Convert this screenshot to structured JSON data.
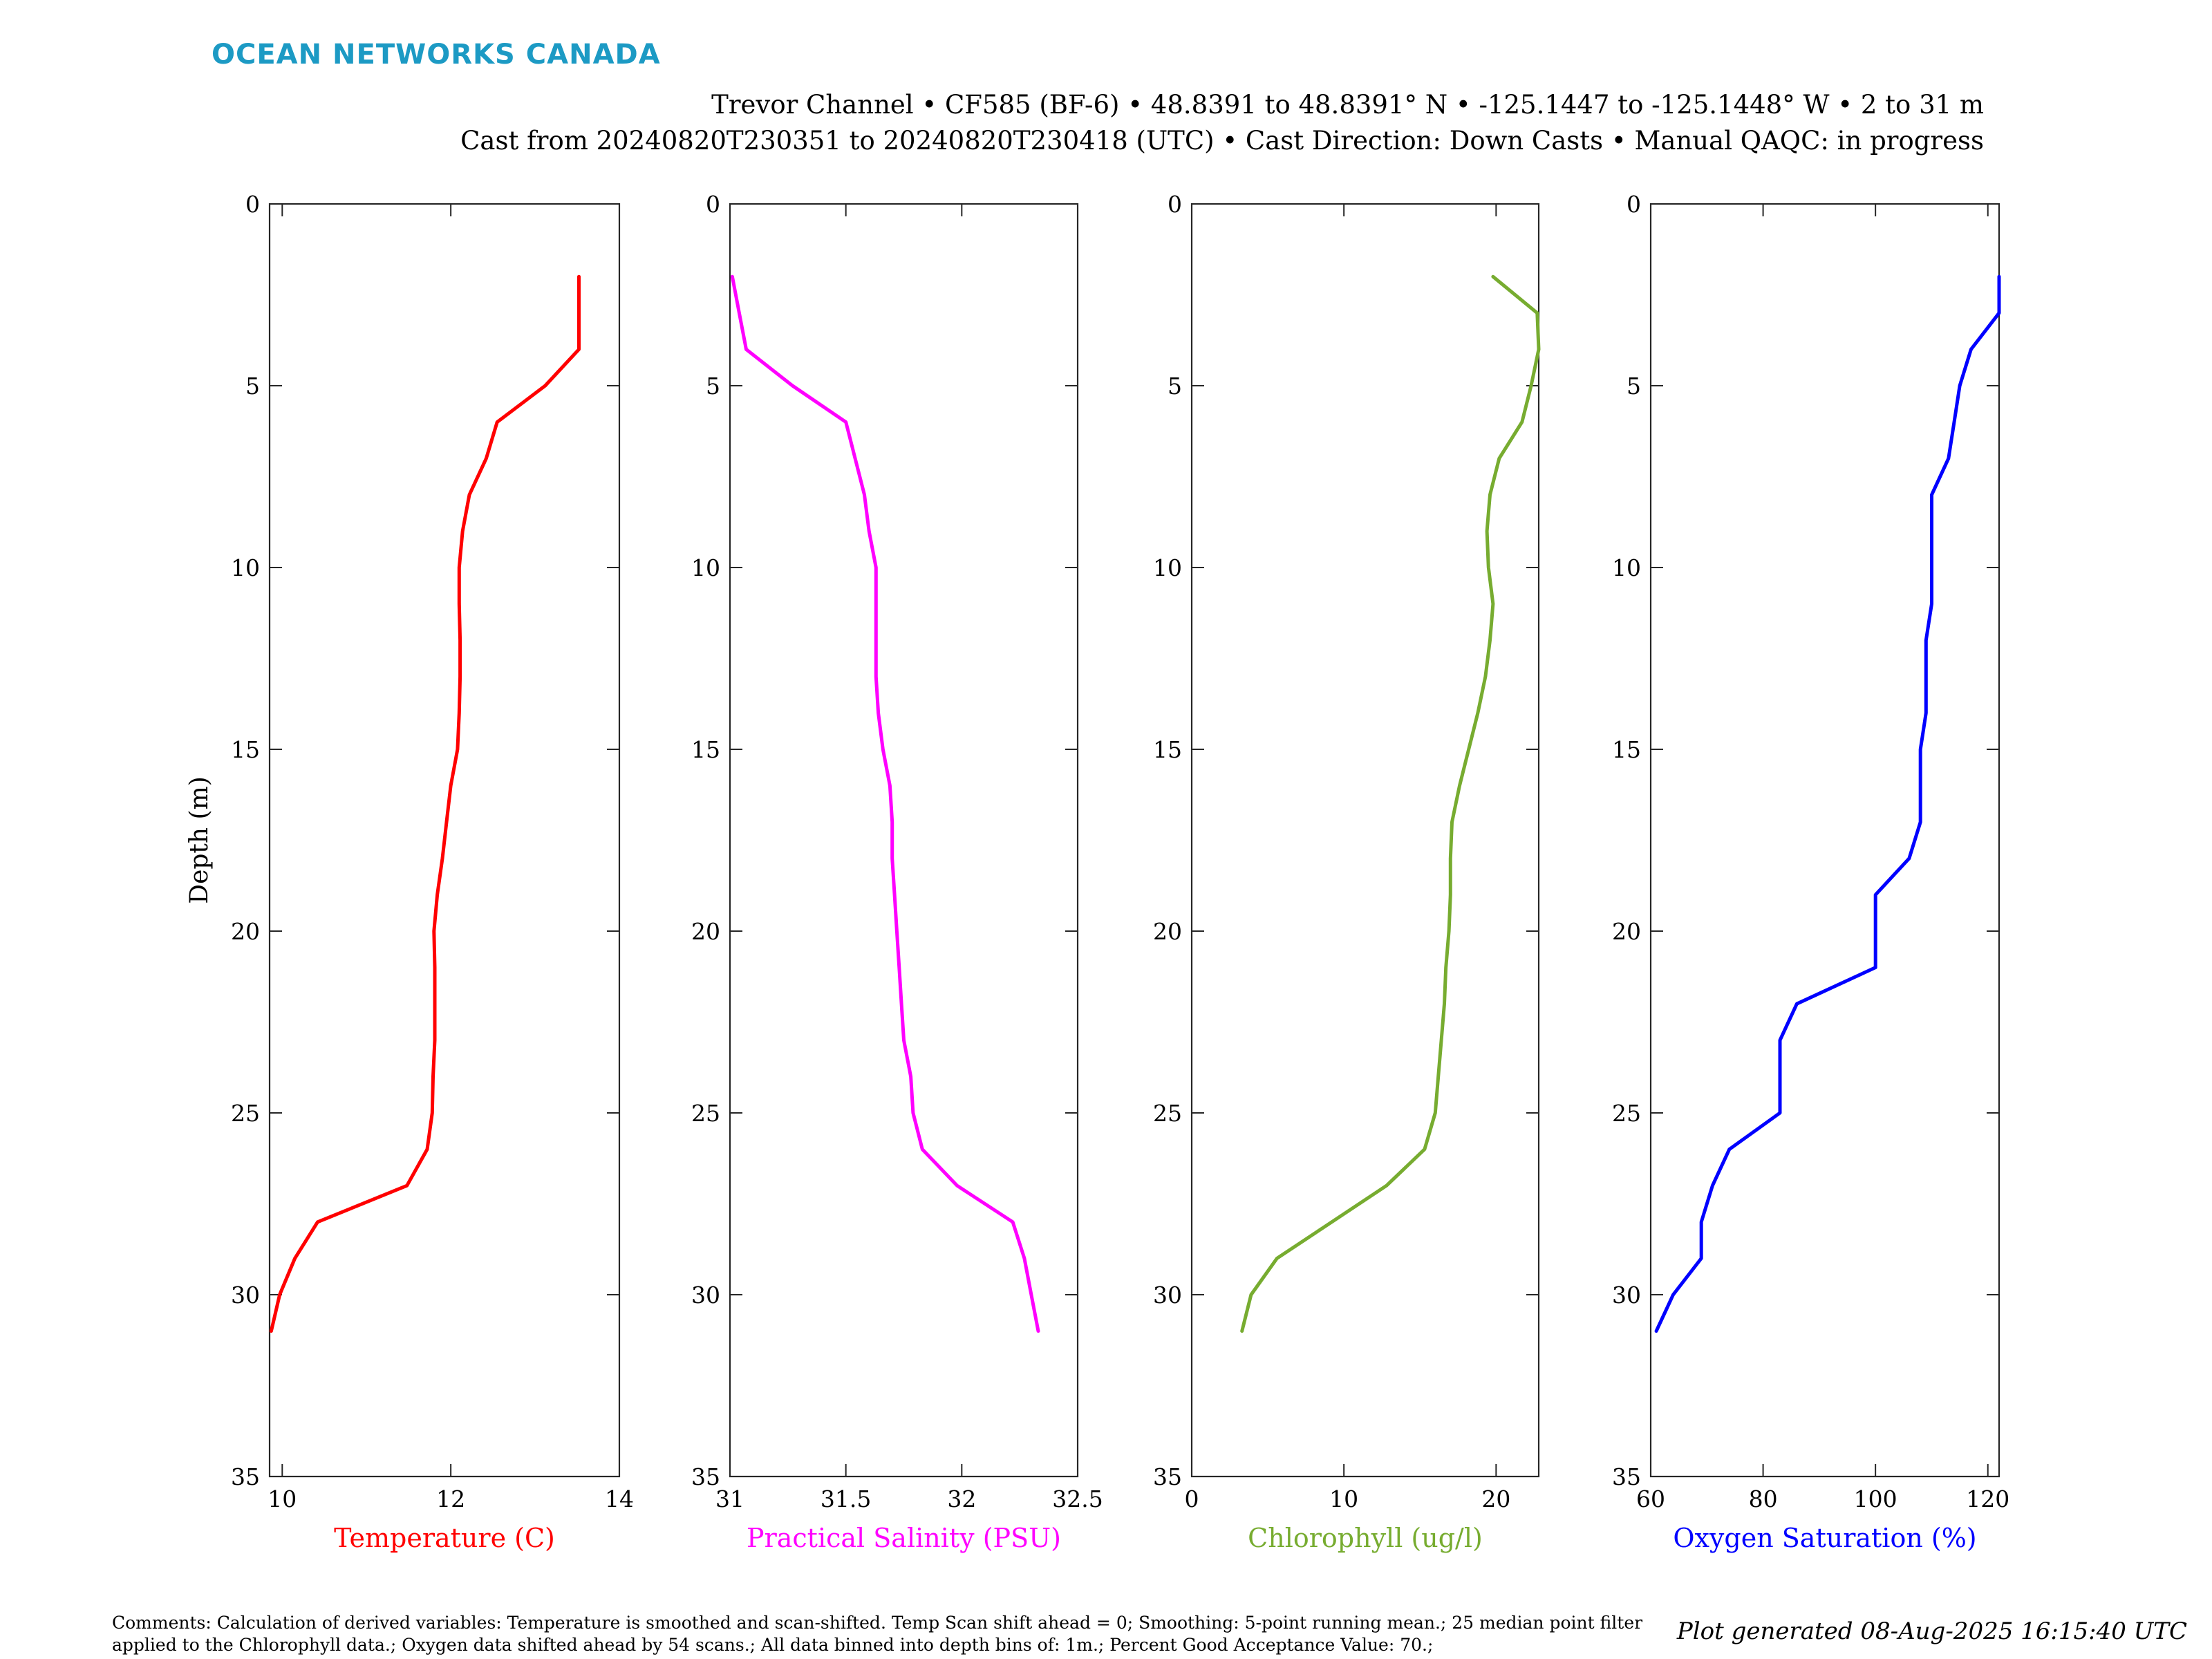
{
  "logo": "OCEAN NETWORKS CANADA",
  "header": {
    "line1": "Trevor Channel • CF585 (BF-6) • 48.8391 to 48.8391° N • -125.1447 to -125.1448° W • 2 to 31 m",
    "line2": "Cast from 20240820T230351 to 20240820T230418 (UTC) • Cast Direction: Down Casts • Manual QAQC: in progress"
  },
  "footer": {
    "comments": "Comments: Calculation of derived variables: Temperature is smoothed and scan-shifted. Temp Scan shift ahead = 0; Smoothing: 5-point running mean.; 25 median point filter applied to the Chlorophyll data.; Oxygen data shifted ahead by 54 scans.; All data binned into depth bins of: 1m.; Percent Good Acceptance Value: 70.;",
    "generated": "Plot generated 08-Aug-2025 16:15:40 UTC"
  },
  "chart_data": [
    {
      "type": "line",
      "xlabel": "Temperature (C)",
      "ylabel": "Depth (m)",
      "color": "#ff0000",
      "xlim": [
        9.85,
        14
      ],
      "xticks": [
        10,
        12,
        14
      ],
      "ylim": [
        0,
        35
      ],
      "yticks": [
        0,
        5,
        10,
        15,
        20,
        25,
        30,
        35
      ],
      "y_reversed": true,
      "grid": false,
      "depth": [
        2,
        3,
        4,
        5,
        6,
        7,
        8,
        9,
        10,
        11,
        12,
        13,
        14,
        15,
        16,
        17,
        18,
        19,
        20,
        21,
        22,
        23,
        24,
        25,
        26,
        27,
        28,
        29,
        30,
        31
      ],
      "values": [
        13.52,
        13.52,
        13.52,
        13.12,
        12.55,
        12.42,
        12.22,
        12.14,
        12.1,
        12.1,
        12.11,
        12.11,
        12.1,
        12.08,
        12.0,
        11.95,
        11.9,
        11.84,
        11.8,
        11.81,
        11.81,
        11.81,
        11.79,
        11.78,
        11.72,
        11.48,
        10.42,
        10.15,
        9.97,
        9.87
      ]
    },
    {
      "type": "line",
      "xlabel": "Practical Salinity (PSU)",
      "ylabel": "",
      "color": "#ff00ff",
      "xlim": [
        31,
        32.5
      ],
      "xticks": [
        31,
        31.5,
        32,
        32.5
      ],
      "ylim": [
        0,
        35
      ],
      "yticks": [
        0,
        5,
        10,
        15,
        20,
        25,
        30,
        35
      ],
      "y_reversed": true,
      "grid": false,
      "depth": [
        2,
        3,
        4,
        5,
        6,
        7,
        8,
        9,
        10,
        11,
        12,
        13,
        14,
        15,
        16,
        17,
        18,
        19,
        20,
        21,
        22,
        23,
        24,
        25,
        26,
        27,
        28,
        29,
        30,
        31
      ],
      "values": [
        31.01,
        31.04,
        31.07,
        31.27,
        31.5,
        31.54,
        31.58,
        31.6,
        31.63,
        31.63,
        31.63,
        31.63,
        31.64,
        31.66,
        31.69,
        31.7,
        31.7,
        31.71,
        31.72,
        31.73,
        31.74,
        31.75,
        31.78,
        31.79,
        31.83,
        31.98,
        32.22,
        32.27,
        32.3,
        32.33
      ]
    },
    {
      "type": "line",
      "xlabel": "Chlorophyll (ug/l)",
      "ylabel": "",
      "color": "#77ac30",
      "xlim": [
        0,
        22.8
      ],
      "xticks": [
        0,
        10,
        20
      ],
      "ylim": [
        0,
        35
      ],
      "yticks": [
        0,
        5,
        10,
        15,
        20,
        25,
        30,
        35
      ],
      "y_reversed": true,
      "grid": false,
      "depth": [
        2,
        3,
        4,
        5,
        6,
        7,
        8,
        9,
        10,
        11,
        12,
        13,
        14,
        15,
        16,
        17,
        18,
        19,
        20,
        21,
        22,
        23,
        24,
        25,
        26,
        27,
        28,
        29,
        30,
        31
      ],
      "values": [
        19.8,
        22.7,
        22.8,
        22.3,
        21.7,
        20.2,
        19.6,
        19.4,
        19.5,
        19.8,
        19.6,
        19.3,
        18.8,
        18.2,
        17.6,
        17.1,
        17.0,
        17.0,
        16.9,
        16.7,
        16.6,
        16.4,
        16.2,
        16.0,
        15.3,
        12.8,
        9.2,
        5.6,
        3.9,
        3.3
      ]
    },
    {
      "type": "line",
      "xlabel": "Oxygen Saturation (%)",
      "ylabel": "",
      "color": "#0000ff",
      "xlim": [
        60,
        122
      ],
      "xticks": [
        60,
        80,
        100,
        120
      ],
      "ylim": [
        0,
        35
      ],
      "yticks": [
        0,
        5,
        10,
        15,
        20,
        25,
        30,
        35
      ],
      "y_reversed": true,
      "grid": false,
      "depth": [
        2,
        3,
        4,
        5,
        6,
        7,
        8,
        9,
        10,
        11,
        12,
        13,
        14,
        15,
        16,
        17,
        18,
        19,
        20,
        21,
        22,
        23,
        24,
        25,
        26,
        27,
        28,
        29,
        30,
        31
      ],
      "values": [
        122,
        122,
        117,
        115,
        114,
        113,
        110,
        110,
        110,
        110,
        109,
        109,
        109,
        108,
        108,
        108,
        106,
        100,
        100,
        100,
        86,
        83,
        83,
        83,
        74,
        71,
        69,
        69,
        64,
        61
      ]
    }
  ]
}
